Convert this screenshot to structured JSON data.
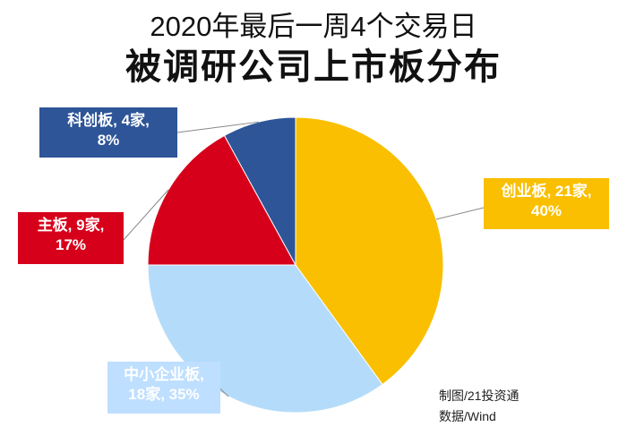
{
  "chart_data": {
    "type": "pie",
    "title": "2020年最后一周4个交易日",
    "subtitle": "被调研公司上市板分布",
    "slices": [
      {
        "label": "创业板",
        "count_text": "21家",
        "value": 40,
        "pct_text": "40%",
        "color": "#f9bf00"
      },
      {
        "label": "中小企业板",
        "count_text": "18家",
        "value": 35,
        "pct_text": "35%",
        "color": "#b4dcfa"
      },
      {
        "label": "主板",
        "count_text": "9家",
        "value": 17,
        "pct_text": "17%",
        "color": "#d7001b"
      },
      {
        "label": "科创板",
        "count_text": "4家",
        "value": 8,
        "pct_text": "8%",
        "color": "#2e5597"
      }
    ],
    "legend": "none"
  },
  "labels": {
    "kcb_line1": "科创板, 4家,",
    "kcb_line2": "8%",
    "cyb_line1": "创业板, 21家,",
    "cyb_line2": "40%",
    "zb_line1": "主板, 9家,",
    "zb_line2": "17%",
    "zxb_line1": "中小企业板,",
    "zxb_line2": "18家, 35%"
  },
  "source": {
    "maker": "制图/21投资通",
    "data": "数据/Wind"
  }
}
